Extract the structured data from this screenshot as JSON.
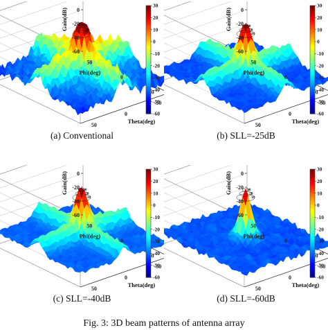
{
  "chart_data": [
    {
      "type": "surface3d",
      "caption": "(a) Conventional",
      "zlabel": "Gain(dB)",
      "xlabel": "Phi(deg)",
      "ylabel": "Theta(deg)",
      "zticks": [
        "40",
        "20",
        "0",
        "-20",
        "-40",
        "-60"
      ],
      "xticks": [
        "50",
        "0",
        "-50"
      ],
      "yticks": [
        "-50",
        "0",
        "50"
      ],
      "colorbar_ticks": [
        "30",
        "20",
        "10",
        "0",
        "-10",
        "-20",
        "-30",
        "-40",
        "-50",
        "-60"
      ],
      "contour_labels": [
        "30",
        "20",
        "10"
      ],
      "zlim": [
        -60,
        40
      ],
      "colorbar_range": [
        -60,
        30
      ],
      "peak_gain": 31,
      "floor_gain": -45,
      "shape": "cross"
    },
    {
      "type": "surface3d",
      "caption": "(b) SLL=-25dB",
      "zlabel": "Gain(dB)",
      "xlabel": "Phi(deg)",
      "ylabel": "Theta(deg)",
      "zticks": [
        "40",
        "20",
        "0",
        "-20",
        "-40",
        "-60"
      ],
      "xticks": [
        "50",
        "0",
        "-50"
      ],
      "yticks": [
        "-50",
        "0",
        "50"
      ],
      "colorbar_ticks": [
        "30",
        "20",
        "10",
        "0",
        "-10",
        "-20",
        "-30",
        "-40",
        "-50",
        "-60"
      ],
      "contour_labels": [
        "30",
        "20",
        "10"
      ],
      "zlim": [
        -60,
        40
      ],
      "colorbar_range": [
        -60,
        30
      ],
      "peak_gain": 31,
      "floor_gain": -42,
      "shape": "cross"
    },
    {
      "type": "surface3d",
      "caption": "(c) SLL=-40dB",
      "zlabel": "Gain(dB)",
      "xlabel": "Phi(deg)",
      "ylabel": "Theta(deg)",
      "zticks": [
        "40",
        "20",
        "0",
        "-20",
        "-40",
        "-60"
      ],
      "xticks": [
        "50",
        "0",
        "-50"
      ],
      "yticks": [
        "-50",
        "0",
        "50"
      ],
      "colorbar_ticks": [
        "30",
        "20",
        "10",
        "0",
        "-10",
        "-20",
        "-30",
        "-40",
        "-50",
        "-60"
      ],
      "contour_labels": [
        "30",
        "20",
        "10"
      ],
      "zlim": [
        -60,
        40
      ],
      "colorbar_range": [
        -60,
        30
      ],
      "peak_gain": 31,
      "floor_gain": -40,
      "shape": "cross"
    },
    {
      "type": "surface3d",
      "caption": "(d) SLL=-60dB",
      "zlabel": "Gain(dB)",
      "xlabel": "Phi(deg)",
      "ylabel": "Theta(deg)",
      "zticks": [
        "40",
        "20",
        "0",
        "-20",
        "-40",
        "-60"
      ],
      "xticks": [
        "50",
        "0",
        "-50"
      ],
      "yticks": [
        "-50",
        "0",
        "50"
      ],
      "colorbar_ticks": [
        "30",
        "20",
        "10",
        "0",
        "-10",
        "-20",
        "-30",
        "-40",
        "-50",
        "-60"
      ],
      "contour_labels": [
        "30",
        "20",
        "10"
      ],
      "zlim": [
        -60,
        40
      ],
      "colorbar_range": [
        -60,
        30
      ],
      "peak_gain": 31,
      "floor_gain": -45,
      "shape": "mainlobe"
    }
  ],
  "figure_caption": "Fig. 3: 3D beam patterns of antenna array"
}
